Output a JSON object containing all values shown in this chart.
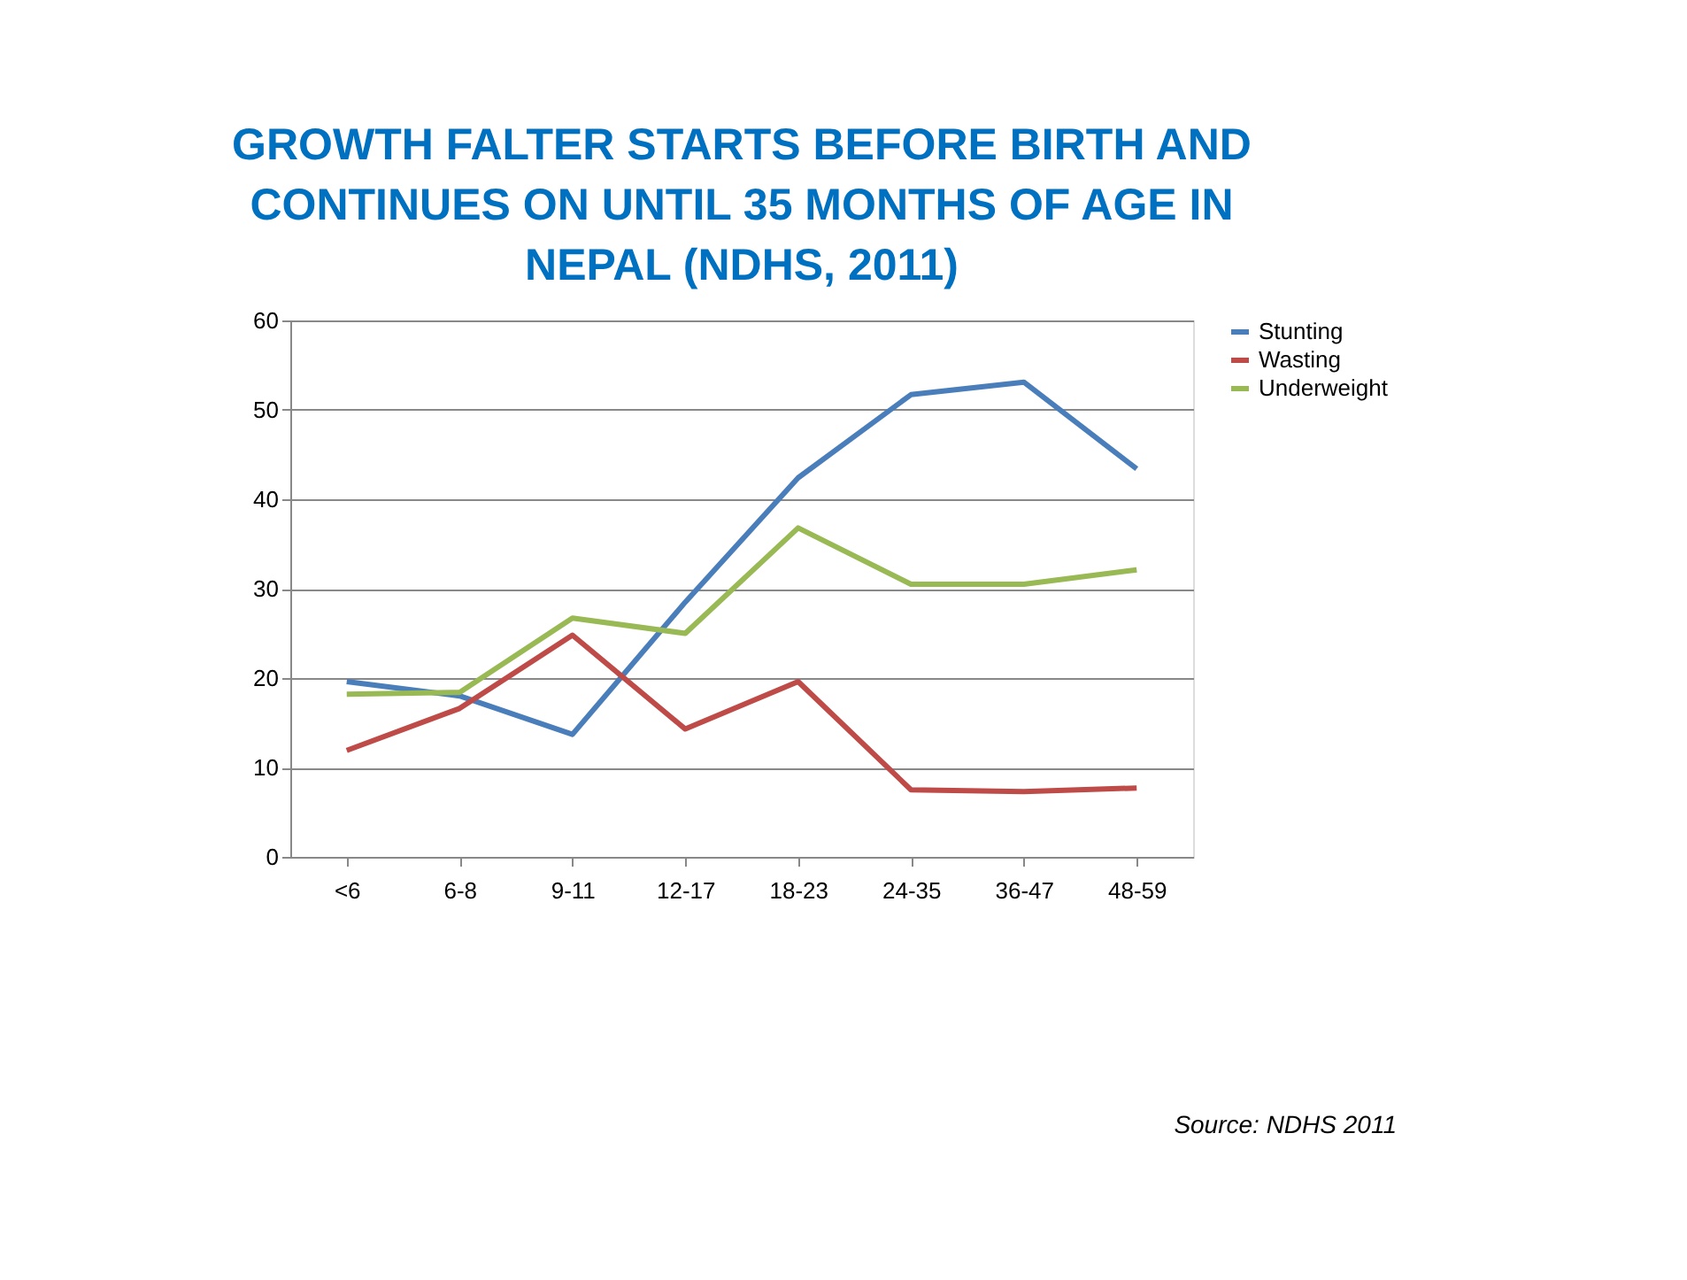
{
  "chart_data": {
    "type": "line",
    "title": "GROWTH FALTER STARTS BEFORE BIRTH AND\nCONTINUES ON UNTIL 35 MONTHS OF AGE IN\nNEPAL (NDHS, 2011)",
    "categories": [
      "<6",
      "6-8",
      "9-11",
      "12-17",
      "18-23",
      "24-35",
      "36-47",
      "48-59"
    ],
    "series": [
      {
        "name": "Stunting",
        "color": "#4a7ebb",
        "values": [
          19.6,
          18,
          13.7,
          28.5,
          42.4,
          51.7,
          53.1,
          43.4
        ]
      },
      {
        "name": "Wasting",
        "color": "#be4b48",
        "values": [
          11.9,
          16.6,
          24.8,
          14.3,
          19.6,
          7.5,
          7.3,
          7.7
        ]
      },
      {
        "name": "Underweight",
        "color": "#98b954",
        "values": [
          18.2,
          18.4,
          26.7,
          25,
          36.8,
          30.5,
          30.5,
          32.1
        ]
      }
    ],
    "ylim": [
      0,
      60
    ],
    "yticks": [
      0,
      10,
      20,
      30,
      40,
      50,
      60
    ],
    "grid": "y",
    "legend": "right",
    "marker": "none",
    "line_style": "solid",
    "annotations": [
      "Source: NDHS 2011"
    ]
  }
}
